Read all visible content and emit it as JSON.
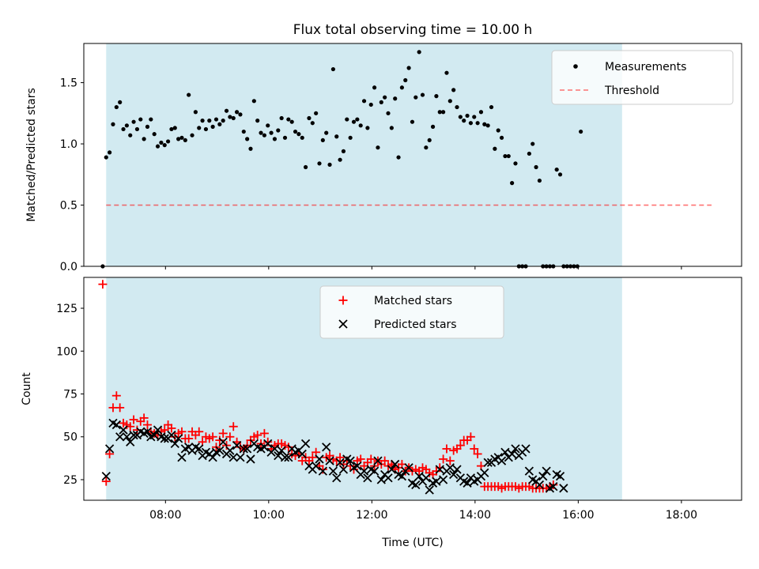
{
  "colors": {
    "observing_band": "#add8e6",
    "measurement": "#000000",
    "threshold": "#ff0000",
    "matched": "#ff0000",
    "predicted": "#000000"
  },
  "chart_data": [
    {
      "type": "scatter",
      "title": "Flux total observing time = 10.00 h",
      "xlabel": "",
      "ylabel": "Matched/Predicted stars",
      "xlim": [
        "06:25",
        "19:10"
      ],
      "ylim": [
        0,
        1.82
      ],
      "yticks": [
        "0.0",
        "0.5",
        "1.0",
        "1.5"
      ],
      "legend": {
        "placement": "upper right",
        "entries": [
          "Measurements",
          "Threshold"
        ]
      },
      "observing_window": {
        "start": "06:51",
        "end": "16:51"
      },
      "threshold": {
        "value": 0.5,
        "from": "06:51",
        "to": "18:35"
      },
      "series": [
        {
          "name": "Measurements",
          "points": [
            [
              "06:47",
              0.0
            ],
            [
              "06:51",
              0.89
            ],
            [
              "06:55",
              0.93
            ],
            [
              "06:59",
              1.16
            ],
            [
              "07:03",
              1.3
            ],
            [
              "07:07",
              1.34
            ],
            [
              "07:11",
              1.12
            ],
            [
              "07:15",
              1.15
            ],
            [
              "07:19",
              1.07
            ],
            [
              "07:23",
              1.18
            ],
            [
              "07:27",
              1.12
            ],
            [
              "07:31",
              1.2
            ],
            [
              "07:35",
              1.04
            ],
            [
              "07:39",
              1.14
            ],
            [
              "07:43",
              1.2
            ],
            [
              "07:47",
              1.08
            ],
            [
              "07:51",
              0.98
            ],
            [
              "07:55",
              1.01
            ],
            [
              "07:59",
              0.99
            ],
            [
              "08:03",
              1.02
            ],
            [
              "08:07",
              1.12
            ],
            [
              "08:11",
              1.13
            ],
            [
              "08:15",
              1.04
            ],
            [
              "08:19",
              1.05
            ],
            [
              "08:23",
              1.03
            ],
            [
              "08:27",
              1.4
            ],
            [
              "08:31",
              1.07
            ],
            [
              "08:35",
              1.26
            ],
            [
              "08:39",
              1.13
            ],
            [
              "08:43",
              1.19
            ],
            [
              "08:47",
              1.12
            ],
            [
              "08:51",
              1.19
            ],
            [
              "08:55",
              1.14
            ],
            [
              "08:59",
              1.2
            ],
            [
              "09:03",
              1.16
            ],
            [
              "09:07",
              1.19
            ],
            [
              "09:11",
              1.27
            ],
            [
              "09:15",
              1.22
            ],
            [
              "09:19",
              1.21
            ],
            [
              "09:23",
              1.26
            ],
            [
              "09:27",
              1.24
            ],
            [
              "09:31",
              1.1
            ],
            [
              "09:35",
              1.04
            ],
            [
              "09:39",
              0.96
            ],
            [
              "09:43",
              1.35
            ],
            [
              "09:47",
              1.19
            ],
            [
              "09:51",
              1.09
            ],
            [
              "09:55",
              1.07
            ],
            [
              "09:59",
              1.15
            ],
            [
              "10:03",
              1.09
            ],
            [
              "10:07",
              1.04
            ],
            [
              "10:11",
              1.11
            ],
            [
              "10:15",
              1.21
            ],
            [
              "10:19",
              1.05
            ],
            [
              "10:23",
              1.2
            ],
            [
              "10:27",
              1.18
            ],
            [
              "10:31",
              1.1
            ],
            [
              "10:35",
              1.08
            ],
            [
              "10:39",
              1.05
            ],
            [
              "10:43",
              0.81
            ],
            [
              "10:47",
              1.21
            ],
            [
              "10:51",
              1.17
            ],
            [
              "10:55",
              1.25
            ],
            [
              "10:59",
              0.84
            ],
            [
              "11:03",
              1.03
            ],
            [
              "11:07",
              1.09
            ],
            [
              "11:11",
              0.83
            ],
            [
              "11:15",
              1.61
            ],
            [
              "11:19",
              1.06
            ],
            [
              "11:23",
              0.87
            ],
            [
              "11:27",
              0.94
            ],
            [
              "11:31",
              1.2
            ],
            [
              "11:35",
              1.05
            ],
            [
              "11:39",
              1.18
            ],
            [
              "11:43",
              1.2
            ],
            [
              "11:47",
              1.15
            ],
            [
              "11:51",
              1.35
            ],
            [
              "11:55",
              1.13
            ],
            [
              "11:59",
              1.32
            ],
            [
              "12:03",
              1.46
            ],
            [
              "12:07",
              0.97
            ],
            [
              "12:11",
              1.34
            ],
            [
              "12:15",
              1.38
            ],
            [
              "12:19",
              1.25
            ],
            [
              "12:23",
              1.13
            ],
            [
              "12:27",
              1.37
            ],
            [
              "12:31",
              0.89
            ],
            [
              "12:35",
              1.46
            ],
            [
              "12:39",
              1.52
            ],
            [
              "12:43",
              1.62
            ],
            [
              "12:47",
              1.18
            ],
            [
              "12:51",
              1.38
            ],
            [
              "12:55",
              1.75
            ],
            [
              "12:59",
              1.4
            ],
            [
              "13:03",
              0.97
            ],
            [
              "13:07",
              1.03
            ],
            [
              "13:11",
              1.14
            ],
            [
              "13:15",
              1.39
            ],
            [
              "13:19",
              1.26
            ],
            [
              "13:23",
              1.26
            ],
            [
              "13:27",
              1.58
            ],
            [
              "13:31",
              1.35
            ],
            [
              "13:35",
              1.44
            ],
            [
              "13:39",
              1.3
            ],
            [
              "13:43",
              1.22
            ],
            [
              "13:47",
              1.19
            ],
            [
              "13:51",
              1.23
            ],
            [
              "13:55",
              1.17
            ],
            [
              "13:59",
              1.22
            ],
            [
              "14:03",
              1.17
            ],
            [
              "14:07",
              1.26
            ],
            [
              "14:11",
              1.16
            ],
            [
              "14:15",
              1.15
            ],
            [
              "14:19",
              1.3
            ],
            [
              "14:23",
              0.96
            ],
            [
              "14:27",
              1.11
            ],
            [
              "14:31",
              1.05
            ],
            [
              "14:35",
              0.9
            ],
            [
              "14:39",
              0.9
            ],
            [
              "14:43",
              0.68
            ],
            [
              "14:47",
              0.84
            ],
            [
              "14:51",
              0.0
            ],
            [
              "14:55",
              0.0
            ],
            [
              "14:59",
              0.0
            ],
            [
              "15:03",
              0.92
            ],
            [
              "15:07",
              1.0
            ],
            [
              "15:11",
              0.81
            ],
            [
              "15:15",
              0.7
            ],
            [
              "15:19",
              0.0
            ],
            [
              "15:23",
              0.0
            ],
            [
              "15:27",
              0.0
            ],
            [
              "15:31",
              0.0
            ],
            [
              "15:35",
              0.79
            ],
            [
              "15:39",
              0.75
            ],
            [
              "15:43",
              0.0
            ],
            [
              "15:47",
              0.0
            ],
            [
              "15:51",
              0.0
            ],
            [
              "15:55",
              0.0
            ],
            [
              "15:59",
              0.0
            ],
            [
              "16:03",
              1.1
            ]
          ]
        }
      ]
    },
    {
      "type": "scatter",
      "title": "",
      "xlabel": "Time (UTC)",
      "ylabel": "Count",
      "xlim": [
        "06:25",
        "19:10"
      ],
      "ylim": [
        13,
        143
      ],
      "yticks": [
        "25",
        "50",
        "75",
        "100",
        "125"
      ],
      "xticks": [
        "08:00",
        "10:00",
        "12:00",
        "14:00",
        "16:00",
        "18:00"
      ],
      "legend": {
        "placement": "upper center",
        "entries": [
          "Matched stars",
          "Predicted stars"
        ]
      },
      "observing_window": {
        "start": "06:51",
        "end": "16:51"
      },
      "series": [
        {
          "name": "Matched stars",
          "marker": "+",
          "values": [
            139,
            24,
            40,
            67,
            74,
            67,
            58,
            57,
            56,
            60,
            54,
            59,
            61,
            57,
            53,
            52,
            51,
            53,
            54,
            57,
            55,
            50,
            52,
            53,
            49,
            49,
            53,
            51,
            53,
            47,
            50,
            49,
            50,
            44,
            48,
            52,
            45,
            50,
            56,
            47,
            44,
            43,
            45,
            48,
            50,
            51,
            46,
            52,
            47,
            43,
            45,
            46,
            46,
            45,
            44,
            40,
            39,
            40,
            36,
            38,
            36,
            38,
            41,
            33,
            31,
            38,
            39,
            37,
            36,
            38,
            34,
            36,
            33,
            31,
            36,
            37,
            33,
            35,
            37,
            33,
            36,
            34,
            36,
            33,
            34,
            31,
            32,
            34,
            30,
            32,
            30,
            31,
            30,
            32,
            31,
            29,
            28,
            30,
            32,
            37,
            43,
            36,
            42,
            43,
            45,
            48,
            48,
            50,
            43,
            40,
            33,
            21,
            21,
            21,
            21,
            21,
            20,
            21,
            21,
            21,
            21,
            20,
            21,
            21,
            21,
            20,
            20,
            20,
            20,
            20,
            21,
            22
          ]
        },
        {
          "name": "Predicted stars",
          "marker": "x",
          "values": [
            27,
            43,
            58,
            57,
            50,
            54,
            50,
            47,
            51,
            51,
            53,
            52,
            53,
            50,
            51,
            54,
            50,
            49,
            49,
            51,
            46,
            49,
            38,
            43,
            44,
            42,
            44,
            43,
            39,
            41,
            40,
            38,
            41,
            42,
            47,
            40,
            42,
            38,
            45,
            38,
            43,
            43,
            37,
            46,
            44,
            43,
            44,
            46,
            41,
            43,
            39,
            42,
            38,
            38,
            43,
            41,
            42,
            40,
            46,
            33,
            31,
            33,
            37,
            30,
            44,
            36,
            30,
            26,
            35,
            31,
            37,
            36,
            32,
            33,
            28,
            30,
            26,
            31,
            30,
            36,
            25,
            28,
            26,
            31,
            34,
            28,
            27,
            30,
            32,
            23,
            22,
            27,
            24,
            26,
            19,
            23,
            24,
            31,
            25,
            30,
            32,
            28,
            31,
            26,
            24,
            23,
            26,
            24,
            25,
            27,
            29,
            35,
            35,
            37,
            38,
            36,
            41,
            38,
            40,
            43,
            39,
            41,
            43,
            30,
            25,
            24,
            22,
            27,
            30,
            20,
            21,
            28,
            27,
            20
          ]
        }
      ]
    }
  ]
}
